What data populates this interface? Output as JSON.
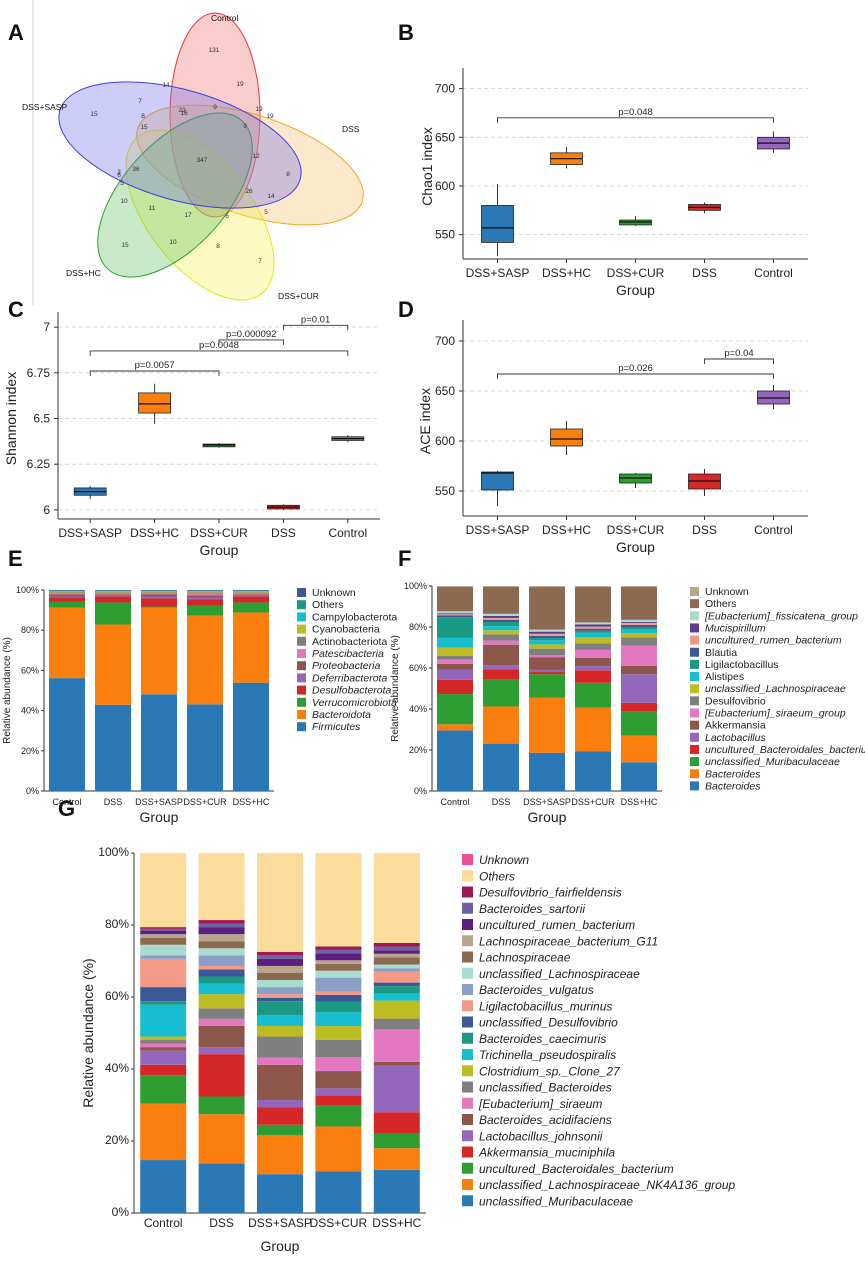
{
  "figure": {
    "panels": [
      "A",
      "B",
      "C",
      "D",
      "E",
      "F",
      "G"
    ]
  },
  "colors": {
    "c_blue": "#2a78b6",
    "c_orange": "#fb7f0f",
    "c_green": "#2e9e33",
    "c_red": "#d62728",
    "c_purple": "#9467bd",
    "c_brown": "#8c564b",
    "c_pink": "#e377c2",
    "c_gray": "#7f7f7f",
    "c_olive": "#bcbd22",
    "c_cyan": "#17becf",
    "c_navy": "#3b5998",
    "c_teal": "#1a9a82",
    "c_others": "#fcdc9a",
    "c_others_f": "#8c6a52"
  },
  "venn": {
    "sets": [
      {
        "name": "Control",
        "color": "#e8373a"
      },
      {
        "name": "DSS",
        "color": "#f5a623"
      },
      {
        "name": "DSS+CUR",
        "color": "#e6e620"
      },
      {
        "name": "DSS+HC",
        "color": "#2ea12e"
      },
      {
        "name": "DSS+SASP",
        "color": "#3f3fd6"
      }
    ],
    "numbers": [
      "131",
      "19",
      "14",
      "23",
      "9",
      "19",
      "16",
      "7",
      "15",
      "15",
      "9",
      "19",
      "12",
      "347",
      "36",
      "26",
      "14",
      "8",
      "5",
      "6",
      "11",
      "17",
      "6",
      "10",
      "8",
      "7",
      "15",
      "10",
      "5",
      "8",
      "3"
    ]
  },
  "chart_data": [
    {
      "id": "B",
      "type": "boxplot",
      "title": "",
      "xlabel": "Group",
      "ylabel": "Chao1 index",
      "categories": [
        "DSS+SASP",
        "DSS+HC",
        "DSS+CUR",
        "DSS",
        "Control"
      ],
      "ylim": [
        525,
        715
      ],
      "yticks": [
        550,
        600,
        650,
        700
      ],
      "boxes": [
        {
          "min": 528,
          "q1": 542,
          "median": 557,
          "q3": 580,
          "max": 602,
          "color": "#2a78b6"
        },
        {
          "min": 618,
          "q1": 622,
          "median": 628,
          "q3": 634,
          "max": 640,
          "color": "#fb7f0f"
        },
        {
          "min": 559,
          "q1": 560,
          "median": 563,
          "q3": 565,
          "max": 569,
          "color": "#2e9e33"
        },
        {
          "min": 572,
          "q1": 575,
          "median": 578,
          "q3": 581,
          "max": 583,
          "color": "#d62728"
        },
        {
          "min": 634,
          "q1": 638,
          "median": 644,
          "q3": 650,
          "max": 656,
          "color": "#9467bd"
        }
      ],
      "comparisons": [
        {
          "from": 0,
          "to": 4,
          "y": 670,
          "label": "p=0.048"
        }
      ]
    },
    {
      "id": "C",
      "type": "boxplot",
      "xlabel": "Group",
      "ylabel": "Shannon index",
      "categories": [
        "DSS+SASP",
        "DSS+HC",
        "DSS+CUR",
        "DSS",
        "Control"
      ],
      "ylim": [
        5.95,
        7.05
      ],
      "yticks": [
        6,
        6.25,
        6.5,
        6.75,
        7
      ],
      "ytick_labels": [
        "6",
        "6.25",
        "6.5",
        "6.75",
        "7"
      ],
      "boxes": [
        {
          "min": 6.06,
          "q1": 6.08,
          "median": 6.1,
          "q3": 6.12,
          "max": 6.13,
          "color": "#2a78b6"
        },
        {
          "min": 6.47,
          "q1": 6.53,
          "median": 6.58,
          "q3": 6.64,
          "max": 6.69,
          "color": "#fb7f0f"
        },
        {
          "min": 6.34,
          "q1": 6.345,
          "median": 6.355,
          "q3": 6.36,
          "max": 6.365,
          "color": "#2e9e33"
        },
        {
          "min": 6.0,
          "q1": 6.005,
          "median": 6.015,
          "q3": 6.025,
          "max": 6.03,
          "color": "#d62728"
        },
        {
          "min": 6.37,
          "q1": 6.38,
          "median": 6.39,
          "q3": 6.4,
          "max": 6.41,
          "color": "#9467bd"
        }
      ],
      "comparisons": [
        {
          "from": 0,
          "to": 2,
          "y": 6.76,
          "label": "p=0.0057"
        },
        {
          "from": 0,
          "to": 4,
          "y": 6.87,
          "label": "p=0.0048"
        },
        {
          "from": 2,
          "to": 3,
          "y": 6.93,
          "label": "p=0.000092"
        },
        {
          "from": 3,
          "to": 4,
          "y": 7.01,
          "label": "p=0.01"
        }
      ]
    },
    {
      "id": "D",
      "type": "boxplot",
      "xlabel": "Group",
      "ylabel": "ACE index",
      "categories": [
        "DSS+SASP",
        "DSS+HC",
        "DSS+CUR",
        "DSS",
        "Control"
      ],
      "ylim": [
        525,
        715
      ],
      "yticks": [
        550,
        600,
        650,
        700
      ],
      "boxes": [
        {
          "min": 535,
          "q1": 551,
          "median": 568,
          "q3": 569,
          "max": 570,
          "color": "#2a78b6"
        },
        {
          "min": 586,
          "q1": 595,
          "median": 602,
          "q3": 612,
          "max": 620,
          "color": "#fb7f0f"
        },
        {
          "min": 553,
          "q1": 558,
          "median": 563,
          "q3": 567,
          "max": 568,
          "color": "#2e9e33"
        },
        {
          "min": 545,
          "q1": 552,
          "median": 560,
          "q3": 567,
          "max": 572,
          "color": "#d62728"
        },
        {
          "min": 632,
          "q1": 637,
          "median": 643,
          "q3": 650,
          "max": 656,
          "color": "#9467bd"
        }
      ],
      "comparisons": [
        {
          "from": 0,
          "to": 4,
          "y": 667,
          "label": "p=0.026"
        },
        {
          "from": 3,
          "to": 4,
          "y": 682,
          "label": "p=0.04"
        }
      ]
    },
    {
      "id": "E",
      "type": "stacked-bar",
      "xlabel": "Group",
      "ylabel": "Relative abundance (%)",
      "categories": [
        "Control",
        "DSS",
        "DSS+SASP",
        "DSS+CUR",
        "DSS+HC"
      ],
      "yticks": [
        "0%",
        "20%",
        "40%",
        "60%",
        "80%",
        "100%"
      ],
      "series": [
        {
          "name": "Firmicutes",
          "color": "#2a78b6",
          "italic": true,
          "values": [
            56,
            43,
            48,
            43,
            54
          ]
        },
        {
          "name": "Bacteroidota",
          "color": "#fb7f0f",
          "italic": true,
          "values": [
            35,
            40,
            43,
            44,
            35
          ]
        },
        {
          "name": "Verrucomicrobiota",
          "color": "#2e9e33",
          "italic": true,
          "values": [
            3,
            11,
            0.5,
            5,
            5
          ]
        },
        {
          "name": "Desulfobacterota",
          "color": "#d62728",
          "italic": true,
          "values": [
            2,
            3,
            4,
            3,
            3
          ]
        },
        {
          "name": "Deferribacterota",
          "color": "#9467bd",
          "italic": true,
          "values": [
            0.5,
            0.5,
            1,
            1,
            0.5
          ]
        },
        {
          "name": "Proteobacteria",
          "color": "#8c564b",
          "italic": true,
          "values": [
            1,
            0.5,
            1,
            1,
            0.5
          ]
        },
        {
          "name": "Patescibacteria",
          "color": "#e377c2",
          "italic": true,
          "values": [
            0.5,
            0.5,
            0.5,
            1,
            0.5
          ]
        },
        {
          "name": "Actinobacteriota",
          "color": "#7f7f7f",
          "italic": false,
          "values": [
            0.5,
            0.5,
            0.5,
            0.5,
            0.5
          ]
        },
        {
          "name": "Cyanobacteria",
          "color": "#bcbd22",
          "italic": false,
          "values": [
            0.3,
            0.3,
            0.3,
            0.3,
            0.3
          ]
        },
        {
          "name": "Campylobacterota",
          "color": "#17becf",
          "italic": false,
          "values": [
            0.3,
            0.3,
            0.3,
            0.3,
            0.3
          ]
        },
        {
          "name": "Others",
          "color": "#1a9a82",
          "italic": false,
          "values": [
            0.3,
            0.3,
            0.3,
            0.3,
            0.3
          ]
        },
        {
          "name": "Unknown",
          "color": "#3b5998",
          "italic": false,
          "values": [
            0.3,
            0.3,
            0.3,
            0.3,
            0.3
          ]
        }
      ]
    },
    {
      "id": "F",
      "type": "stacked-bar",
      "xlabel": "Group",
      "ylabel": "Relative abundance (%)",
      "categories": [
        "Control",
        "DSS",
        "DSS+SASP",
        "DSS+CUR",
        "DSS+HC"
      ],
      "yticks": [
        "0%",
        "20%",
        "40%",
        "60%",
        "80%",
        "100%"
      ],
      "series": [
        {
          "name": "Bacteroides",
          "color": "#2a78b6",
          "italic": true,
          "values": [
            30,
            23,
            18,
            19,
            14
          ]
        },
        {
          "name": "Bacteroides",
          "color": "#fb7f0f",
          "italic": true,
          "values": [
            3,
            18,
            26,
            21,
            13
          ]
        },
        {
          "name": "unclassified_Muribaculaceae",
          "color": "#2e9e33",
          "italic": true,
          "values": [
            15,
            13,
            11,
            12,
            12
          ]
        },
        {
          "name": "uncultured_Bacteroidales_bacterium",
          "color": "#d62728",
          "italic": true,
          "values": [
            7,
            5,
            1,
            6,
            4
          ]
        },
        {
          "name": "Lactobacillus",
          "color": "#9467bd",
          "italic": true,
          "values": [
            5,
            2,
            1,
            2,
            14
          ]
        },
        {
          "name": "Akkermansia",
          "color": "#8c564b",
          "italic": false,
          "values": [
            3,
            10,
            6,
            4,
            4
          ]
        },
        {
          "name": "[Eubacterium]_siraeum_group",
          "color": "#e377c2",
          "italic": true,
          "values": [
            2,
            2,
            1,
            4,
            10
          ]
        },
        {
          "name": "Desulfovibrio",
          "color": "#7f7f7f",
          "italic": false,
          "values": [
            2,
            3,
            3,
            3,
            4
          ]
        },
        {
          "name": "unclassified_Lachnospiraceae",
          "color": "#bcbd22",
          "italic": true,
          "values": [
            4,
            2,
            2,
            3,
            2
          ]
        },
        {
          "name": "Alistipes",
          "color": "#17becf",
          "italic": false,
          "values": [
            5,
            2,
            2,
            2,
            2
          ]
        },
        {
          "name": "Ligilactobacillus",
          "color": "#1a9a82",
          "italic": false,
          "values": [
            10,
            2,
            1,
            1,
            1
          ]
        },
        {
          "name": "Blautia",
          "color": "#3b5998",
          "italic": false,
          "values": [
            1,
            1,
            1,
            1,
            1
          ]
        },
        {
          "name": "uncultured_rumen_bacterium",
          "color": "#f39a87",
          "italic": true,
          "values": [
            0.5,
            1,
            1,
            1,
            1
          ]
        },
        {
          "name": "Mucispirillum",
          "color": "#5c3a8e",
          "italic": true,
          "values": [
            0.5,
            1,
            1,
            1,
            0.5
          ]
        },
        {
          "name": "[Eubacterium]_fissicatena_group",
          "color": "#a9dcd1",
          "italic": true,
          "values": [
            1,
            1,
            1,
            1,
            1
          ]
        },
        {
          "name": "Others",
          "color": "#8c6a52",
          "italic": false,
          "values": [
            12,
            13,
            20,
            17,
            16
          ]
        },
        {
          "name": "Unknown",
          "color": "#b8a68c",
          "italic": false,
          "values": [
            0.5,
            0.5,
            0.5,
            0.5,
            0.5
          ]
        }
      ]
    },
    {
      "id": "G",
      "type": "stacked-bar",
      "xlabel": "Group",
      "ylabel": "Relative abundance (%)",
      "categories": [
        "Control",
        "DSS",
        "DSS+SASP",
        "DSS+CUR",
        "DSS+HC"
      ],
      "yticks": [
        "0%",
        "20%",
        "40%",
        "60%",
        "80%",
        "100%"
      ],
      "series": [
        {
          "name": "unclassified_Muribaculaceae",
          "color": "#2a78b6",
          "values": [
            15,
            14,
            11,
            12,
            12
          ]
        },
        {
          "name": "unclassified_Lachnospiraceae_NK4A136_group",
          "color": "#fb7f0f",
          "values": [
            16,
            14,
            11,
            13,
            6
          ]
        },
        {
          "name": "uncultured_Bacteroidales_bacterium",
          "color": "#2e9e33",
          "values": [
            8,
            5,
            3,
            6,
            4
          ]
        },
        {
          "name": "Akkermansia_muciniphila",
          "color": "#d62728",
          "values": [
            3,
            12,
            5,
            3,
            6
          ]
        },
        {
          "name": "Lactobacillus_johnsonii",
          "color": "#9467bd",
          "values": [
            4,
            2,
            2,
            2,
            13
          ]
        },
        {
          "name": "Bacteroides_acidifaciens",
          "color": "#8c564b",
          "values": [
            1,
            6,
            10,
            5,
            1
          ]
        },
        {
          "name": "[Eubacterium]_siraeum",
          "color": "#e377c2",
          "values": [
            1,
            2,
            2,
            4,
            9
          ]
        },
        {
          "name": "unclassified_Bacteroides",
          "color": "#7f7f7f",
          "values": [
            1,
            3,
            6,
            5,
            3
          ]
        },
        {
          "name": "Clostridium_sp._Clone_27",
          "color": "#bcbd22",
          "values": [
            1,
            4,
            3,
            4,
            5
          ]
        },
        {
          "name": "Trichinella_pseudospiralis",
          "color": "#17becf",
          "values": [
            9,
            3,
            3,
            4,
            2
          ]
        },
        {
          "name": "Bacteroides_caecimuris",
          "color": "#1a9a82",
          "values": [
            1,
            2,
            4,
            3,
            2
          ]
        },
        {
          "name": "unclassified_Desulfovibrio",
          "color": "#3b5998",
          "values": [
            4,
            2,
            1,
            2,
            1
          ]
        },
        {
          "name": "Ligilactobacillus_murinus",
          "color": "#f39a87",
          "values": [
            8,
            1,
            1,
            1,
            3
          ]
        },
        {
          "name": "Bacteroides_vulgatus",
          "color": "#8a9ec6",
          "values": [
            1,
            3,
            2,
            4,
            1
          ]
        },
        {
          "name": "unclassified_Lachnospiraceae",
          "color": "#a9dcd1",
          "values": [
            3,
            2,
            2,
            2,
            1
          ]
        },
        {
          "name": "Lachnospiraceae",
          "color": "#8c6a52",
          "values": [
            2,
            2,
            2,
            2,
            2
          ]
        },
        {
          "name": "Lachnospiraceae_bacterium_G11",
          "color": "#b8a68c",
          "values": [
            1,
            2,
            2,
            1,
            1
          ]
        },
        {
          "name": "uncultured_rumen_bacterium",
          "color": "#5b1f80",
          "values": [
            1,
            2,
            2,
            2,
            1
          ]
        },
        {
          "name": "Bacteroides_sartorii",
          "color": "#6d5fa3",
          "values": [
            0.5,
            1,
            1,
            1,
            1
          ]
        },
        {
          "name": "Desulfovibrio_fairfieldensis",
          "color": "#a01850",
          "values": [
            0.5,
            1,
            1,
            1,
            1
          ]
        },
        {
          "name": "Others",
          "color": "#fcdc9a",
          "values": [
            21,
            19,
            28,
            27,
            25
          ]
        },
        {
          "name": "Unknown",
          "color": "#ee4f98",
          "values": [
            0,
            0,
            0,
            0,
            0
          ]
        }
      ]
    }
  ]
}
